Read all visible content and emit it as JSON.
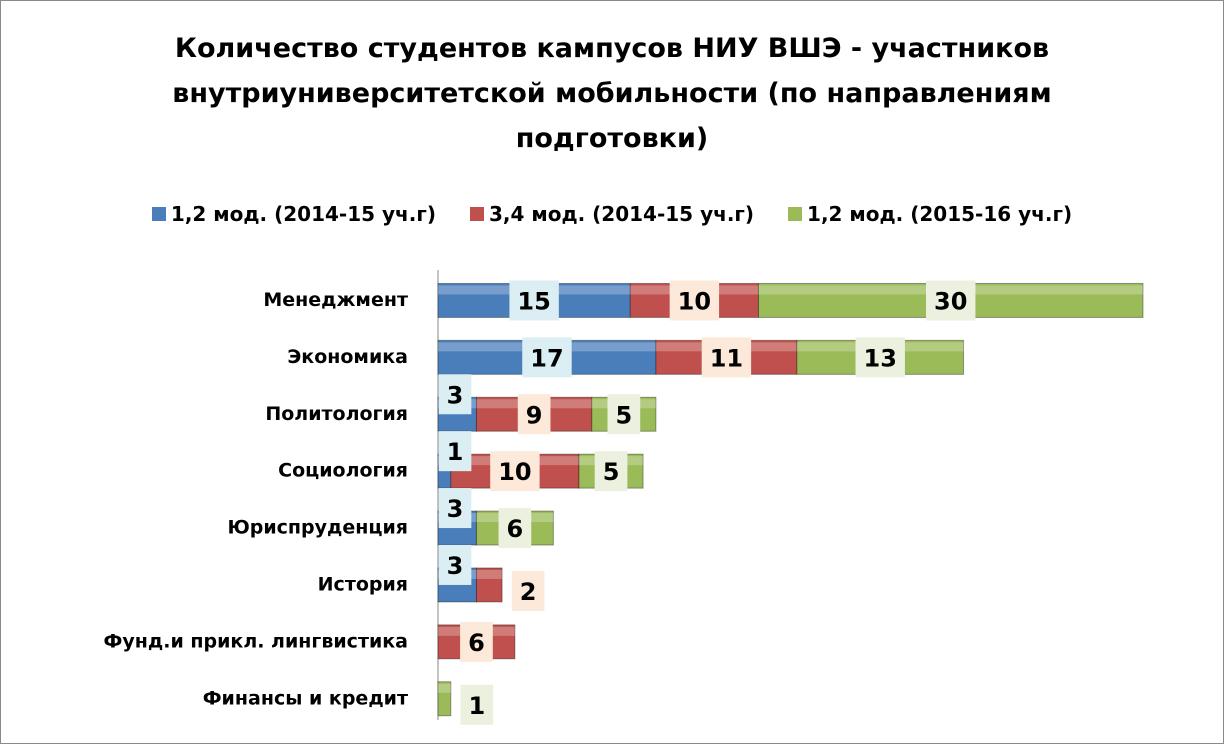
{
  "chart_data": {
    "type": "stacked_bar_horizontal",
    "title": "Количество студентов кампусов НИУ ВШЭ - участников внутриуниверситетской мобильности (по направлениям подготовки)",
    "categories": [
      "Менеджмент",
      "Экономика",
      "Политология",
      "Социология",
      "Юриспруденция",
      "История",
      "Фунд.и прикл. лингвистика",
      "Финансы и кредит"
    ],
    "series": [
      {
        "name": "1,2 мод. (2014-15 уч.г)",
        "color": "#4a7ebb",
        "values": [
          15,
          17,
          3,
          1,
          3,
          3,
          null,
          null
        ]
      },
      {
        "name": "3,4 мод. (2014-15 уч.г)",
        "color": "#c0504d",
        "values": [
          10,
          11,
          9,
          10,
          null,
          2,
          6,
          null
        ]
      },
      {
        "name": "1,2 мод. (2015-16 уч.г)",
        "color": "#9bbb59",
        "values": [
          30,
          13,
          5,
          5,
          6,
          null,
          null,
          1
        ]
      }
    ],
    "legend": "top"
  }
}
